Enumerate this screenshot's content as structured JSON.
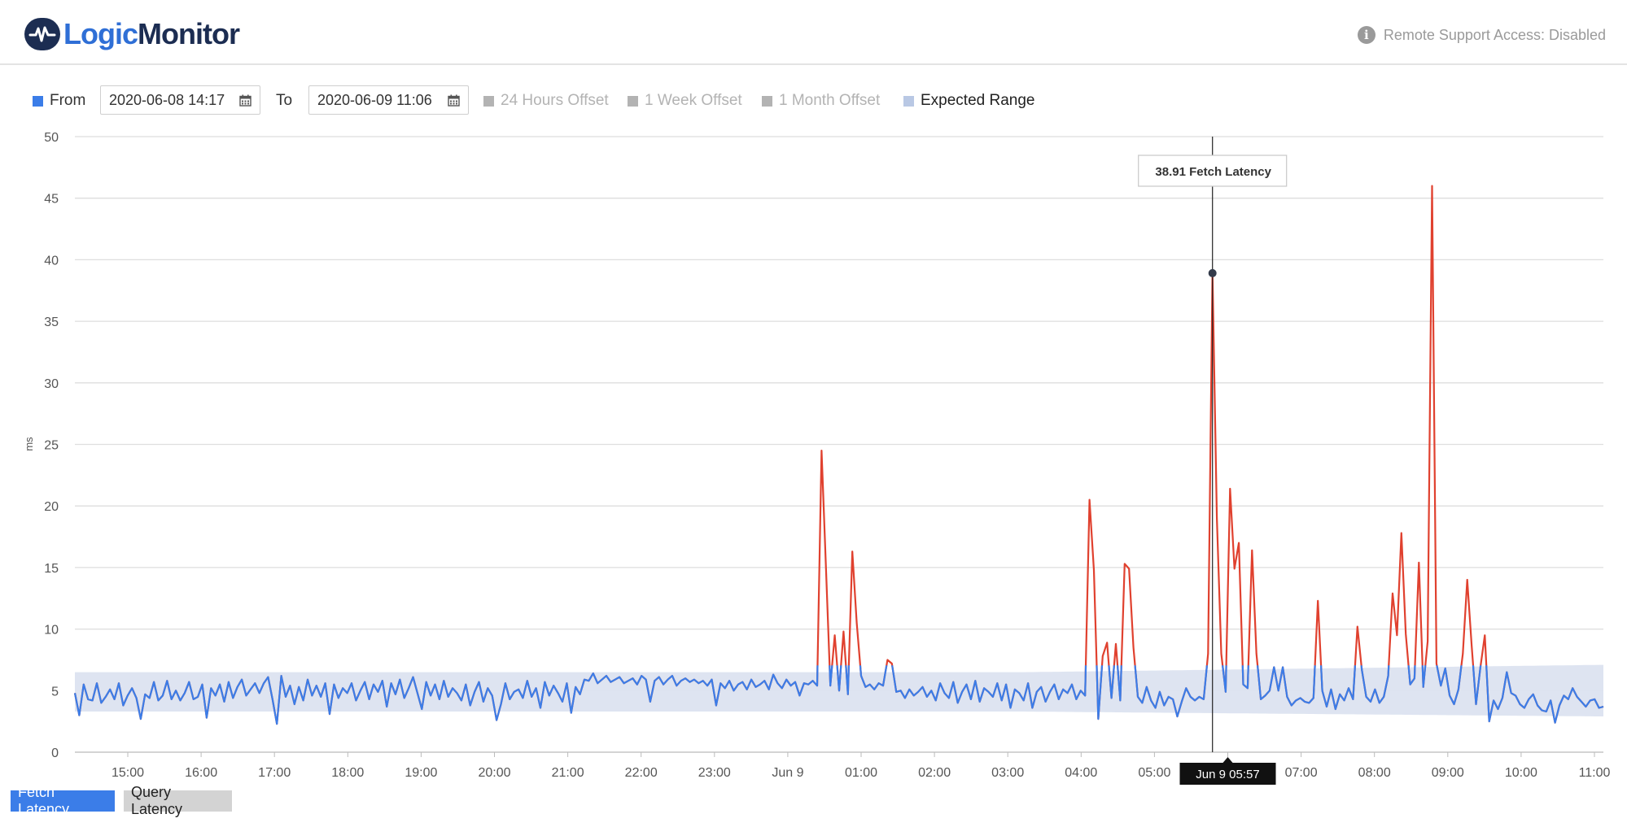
{
  "header": {
    "logo_text_a": "Logic",
    "logo_text_b": "Monitor",
    "remote_support": "Remote Support Access: Disabled"
  },
  "controls": {
    "from_label": "From",
    "from_value": "2020-06-08 14:17",
    "to_label": "To",
    "to_value": "2020-06-09 11:06",
    "offset_24h": "24 Hours Offset",
    "offset_week": "1 Week Offset",
    "offset_month": "1 Month Offset",
    "expected_range": "Expected Range"
  },
  "legend": {
    "fetch": "Fetch Latency",
    "query": "Query Latency"
  },
  "colors": {
    "series_normal": "#3b7de8",
    "series_anomaly": "#e0412f",
    "expected_band": "#dce3f0",
    "offset_gray": "#b3b3b3"
  },
  "chart_data": {
    "type": "line",
    "ylabel": "ms",
    "ylim": [
      0,
      50
    ],
    "y_ticks": [
      0,
      5,
      10,
      15,
      20,
      25,
      30,
      35,
      40,
      45,
      50
    ],
    "x_ticks": [
      "15:00",
      "16:00",
      "17:00",
      "18:00",
      "19:00",
      "20:00",
      "21:00",
      "22:00",
      "23:00",
      "Jun 9",
      "01:00",
      "02:00",
      "03:00",
      "04:00",
      "05:00",
      "Jun 9 05:57",
      "07:00",
      "08:00",
      "09:00",
      "10:00",
      "11:00"
    ],
    "x_start": "2020-06-08 14:17",
    "x_end": "2020-06-09 11:06",
    "tooltip": {
      "value": "38.91",
      "series": "Fetch Latency",
      "time": "Jun 9 05:57"
    },
    "expected_range": {
      "lower": 3.3,
      "upper": 6.5
    },
    "series": [
      {
        "name": "Fetch Latency",
        "values": [
          4.8,
          3.0,
          5.5,
          4.3,
          4.2,
          5.6,
          4.0,
          4.5,
          5.1,
          4.3,
          5.6,
          3.8,
          4.6,
          5.2,
          4.4,
          2.7,
          4.7,
          4.4,
          5.7,
          4.2,
          4.6,
          5.8,
          4.3,
          5.0,
          4.2,
          4.8,
          5.7,
          4.3,
          4.5,
          5.5,
          2.8,
          5.2,
          4.6,
          5.5,
          4.1,
          5.7,
          4.4,
          5.3,
          5.9,
          4.6,
          5.1,
          5.6,
          4.8,
          5.6,
          6.1,
          4.3,
          2.3,
          6.2,
          4.5,
          5.4,
          3.9,
          5.3,
          4.2,
          5.9,
          4.6,
          5.4,
          4.5,
          5.6,
          3.1,
          5.5,
          4.4,
          5.2,
          4.8,
          5.6,
          4.2,
          5.0,
          5.7,
          4.3,
          5.5,
          4.9,
          5.8,
          3.7,
          5.6,
          4.7,
          5.9,
          4.4,
          5.2,
          6.1,
          4.8,
          3.5,
          5.7,
          4.6,
          5.5,
          4.3,
          5.8,
          4.5,
          5.2,
          4.8,
          4.2,
          5.5,
          3.8,
          4.9,
          5.7,
          4.1,
          5.2,
          4.6,
          2.6,
          3.9,
          5.6,
          4.3,
          4.9,
          5.1,
          4.4,
          5.8,
          4.5,
          5.2,
          3.6,
          5.7,
          4.6,
          5.4,
          4.8,
          4.1,
          5.6,
          3.2,
          5.3,
          4.7,
          5.9,
          5.8,
          6.4,
          5.6,
          5.9,
          6.2,
          5.7,
          5.9,
          6.1,
          5.6,
          5.8,
          6.0,
          5.5,
          6.2,
          5.9,
          4.1,
          5.8,
          6.1,
          5.5,
          5.9,
          6.2,
          5.4,
          5.8,
          6.0,
          5.7,
          5.9,
          5.6,
          5.8,
          5.4,
          5.9,
          3.8,
          5.6,
          5.2,
          5.8,
          5.0,
          5.5,
          5.7,
          5.1,
          5.9,
          5.3,
          5.5,
          5.8,
          5.1,
          6.3,
          5.6,
          5.2,
          5.9,
          5.4,
          5.7,
          4.6,
          5.6,
          5.5,
          5.8,
          5.4,
          24.5,
          15.0,
          5.4,
          9.5,
          5.0,
          9.8,
          4.7,
          16.3,
          10.5,
          6.2,
          5.3,
          5.5,
          5.1,
          5.6,
          5.4,
          7.5,
          7.2,
          4.9,
          5.0,
          4.4,
          5.1,
          4.6,
          4.9,
          5.3,
          4.5,
          5.0,
          4.2,
          5.6,
          4.8,
          4.4,
          5.7,
          4.0,
          4.9,
          5.5,
          4.3,
          5.8,
          4.1,
          5.2,
          4.9,
          4.5,
          5.6,
          4.2,
          5.5,
          3.6,
          5.1,
          4.8,
          4.2,
          5.6,
          3.6,
          4.9,
          5.3,
          4.1,
          4.9,
          5.5,
          4.3,
          5.1,
          4.8,
          5.5,
          4.3,
          5.0,
          4.6,
          20.5,
          14.8,
          2.7,
          7.8,
          8.9,
          4.4,
          8.8,
          4.2,
          15.3,
          14.9,
          8.5,
          4.5,
          4.0,
          5.3,
          4.2,
          3.6,
          4.9,
          3.8,
          4.5,
          4.3,
          2.9,
          4.1,
          5.2,
          4.5,
          4.2,
          4.5,
          4.3,
          8.0,
          38.91,
          19.0,
          8.0,
          4.9,
          21.4,
          14.9,
          17.0,
          5.5,
          5.2,
          16.4,
          8.0,
          4.3,
          4.6,
          5.0,
          6.9,
          5.0,
          6.9,
          4.5,
          3.8,
          4.2,
          4.4,
          4.1,
          4.0,
          4.4,
          12.3,
          5.0,
          3.7,
          5.1,
          3.5,
          4.7,
          4.2,
          5.2,
          4.3,
          10.2,
          6.7,
          4.5,
          4.1,
          5.1,
          4.0,
          4.5,
          6.2,
          12.9,
          9.5,
          17.8,
          9.6,
          5.5,
          6.0,
          15.4,
          5.3,
          9.0,
          46.0,
          7.2,
          5.4,
          6.8,
          4.6,
          3.9,
          5.1,
          8.0,
          14.0,
          8.7,
          3.9,
          6.9,
          9.5,
          2.5,
          4.2,
          3.5,
          4.4,
          6.5,
          4.8,
          4.6,
          3.9,
          3.6,
          4.3,
          4.7,
          3.8,
          3.4,
          3.3,
          4.2,
          2.4,
          3.8,
          4.6,
          4.3,
          5.2,
          4.5,
          4.1,
          3.7,
          4.2,
          4.3,
          3.6,
          3.7
        ]
      }
    ]
  }
}
